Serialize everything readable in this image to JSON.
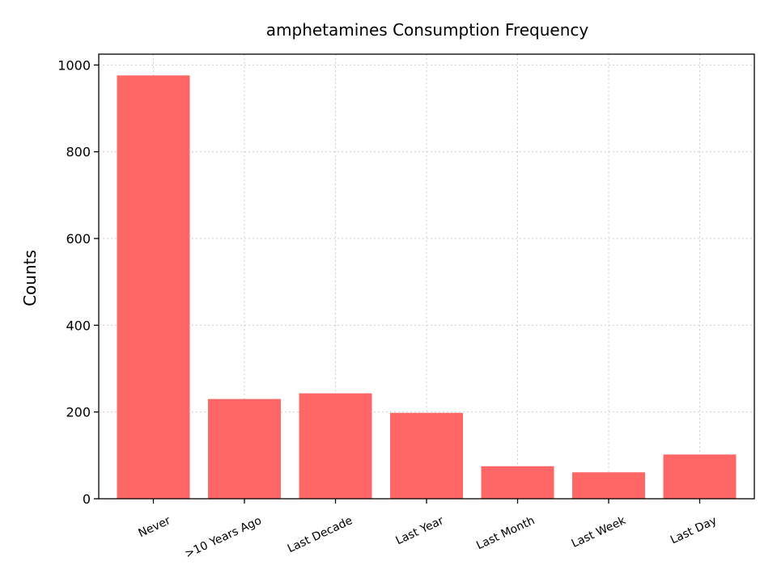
{
  "chart_data": {
    "type": "bar",
    "title": "amphetamines Consumption Frequency",
    "xlabel": "",
    "ylabel": "Counts",
    "categories": [
      "Never",
      ">10 Years Ago",
      "Last Decade",
      "Last Year",
      "Last Month",
      "Last Week",
      "Last Day"
    ],
    "values": [
      976,
      230,
      243,
      198,
      75,
      61,
      102
    ],
    "ylim": [
      0,
      1025
    ],
    "yticks": [
      0,
      200,
      400,
      600,
      800,
      1000
    ],
    "grid": true,
    "bar_color": "#ff6666"
  }
}
